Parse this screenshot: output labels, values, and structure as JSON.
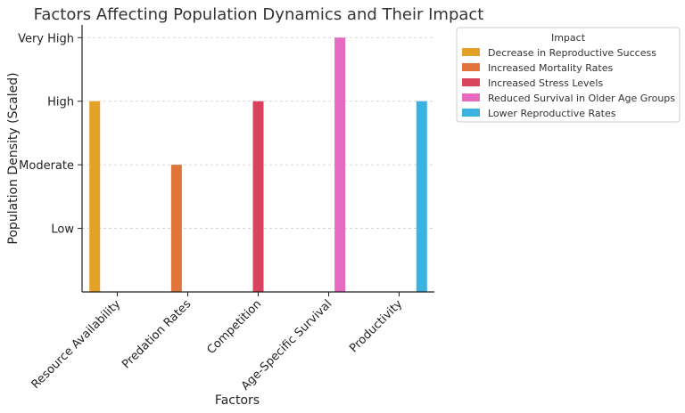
{
  "chart_data": {
    "type": "bar",
    "title": "Factors Affecting Population Dynamics and Their Impact",
    "xlabel": "Factors",
    "ylabel": "Population Density (Scaled)",
    "categories": [
      "Resource Availability",
      "Predation Rates",
      "Competition",
      "Age-Specific Survival",
      "Productivity"
    ],
    "y_tick_labels": [
      "Low",
      "Moderate",
      "High",
      "Very High"
    ],
    "y_tick_values": [
      1,
      2,
      3,
      4
    ],
    "ylim": [
      0,
      4.2
    ],
    "grid": true,
    "legend": {
      "title": "Impact",
      "placement": "outside-top-right",
      "entries": [
        {
          "name": "Decrease in Reproductive Success",
          "color": "#E3A227"
        },
        {
          "name": "Increased Mortality Rates",
          "color": "#E0743A"
        },
        {
          "name": "Increased Stress Levels",
          "color": "#D9435E"
        },
        {
          "name": "Reduced Survival in Older Age Groups",
          "color": "#E66ABF"
        },
        {
          "name": "Lower Reproductive Rates",
          "color": "#3BB3E0"
        }
      ]
    },
    "series": [
      {
        "name": "Decrease in Reproductive Success",
        "values": [
          3,
          null,
          null,
          null,
          null
        ]
      },
      {
        "name": "Increased Mortality Rates",
        "values": [
          null,
          2,
          null,
          null,
          null
        ]
      },
      {
        "name": "Increased Stress Levels",
        "values": [
          null,
          null,
          3,
          null,
          null
        ]
      },
      {
        "name": "Reduced Survival in Older Age Groups",
        "values": [
          null,
          null,
          null,
          4,
          null
        ]
      },
      {
        "name": "Lower Reproductive Rates",
        "values": [
          null,
          null,
          null,
          null,
          3
        ]
      }
    ]
  }
}
